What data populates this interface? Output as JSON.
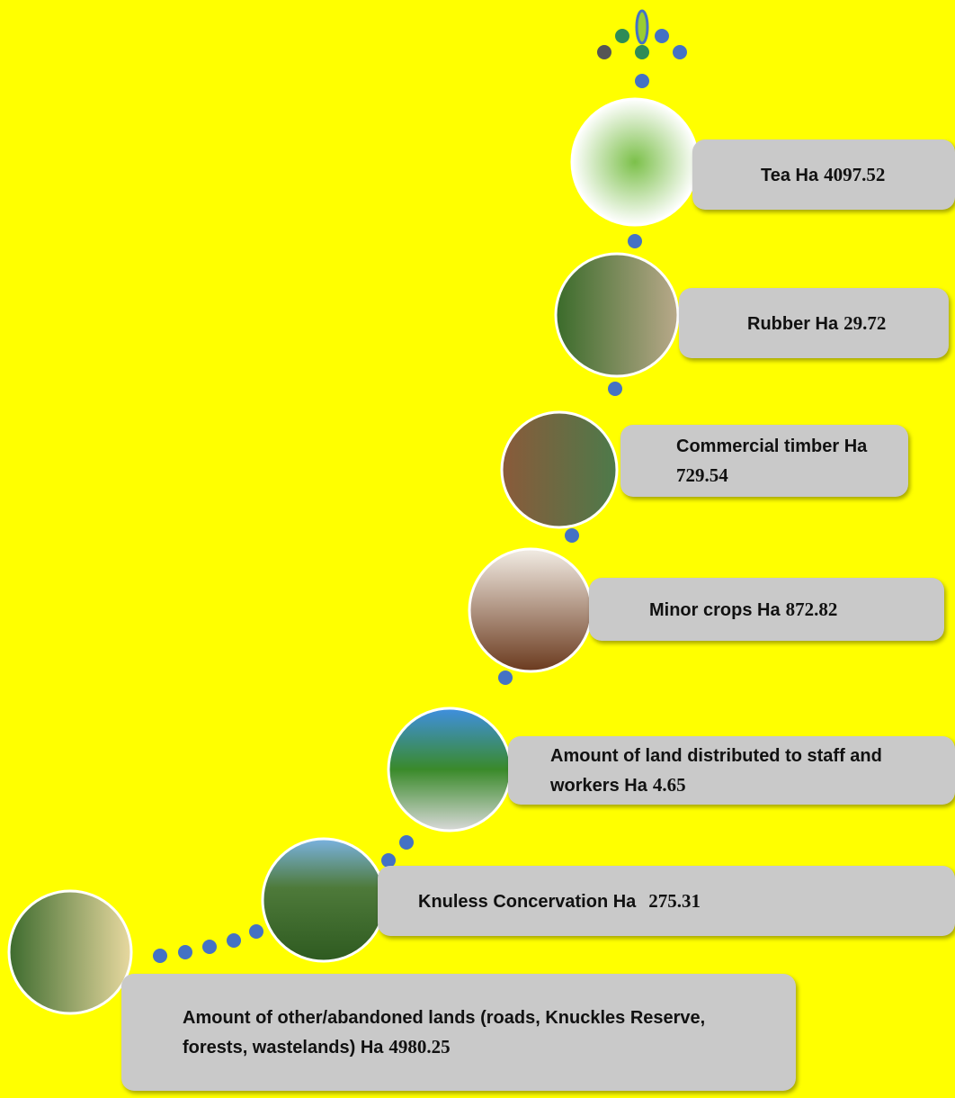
{
  "items": [
    {
      "label": "Tea Ha",
      "value": "4097.52"
    },
    {
      "label": "Rubber Ha",
      "value": "29.72"
    },
    {
      "label": "Commercial timber Ha",
      "value": "729.54"
    },
    {
      "label": "Minor crops Ha",
      "value": "872.82"
    },
    {
      "label": "Amount of land distributed to staff and workers Ha",
      "value": "4.65"
    },
    {
      "label": "Knuless Concervation Ha",
      "value": "275.31"
    },
    {
      "label": "Amount of other/abandoned lands (roads, Knuckles Reserve, forests, wastelands) Ha",
      "value": "4980.25"
    }
  ]
}
